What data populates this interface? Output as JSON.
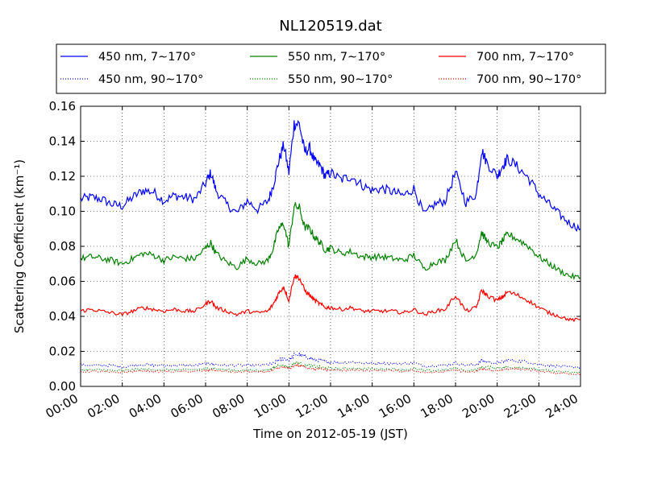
{
  "chart_data": {
    "type": "line",
    "title": "NL120519.dat",
    "xlabel": "Time on 2012-05-19 (JST)",
    "ylabel": "Scattering Coefficient (km⁻¹)",
    "xlim": [
      "00:00",
      "24:00"
    ],
    "ylim": [
      0,
      0.16
    ],
    "x_ticks": [
      "00:00",
      "02:00",
      "04:00",
      "06:00",
      "08:00",
      "10:00",
      "12:00",
      "14:00",
      "16:00",
      "18:00",
      "20:00",
      "22:00",
      "24:00"
    ],
    "y_ticks": [
      "0.00",
      "0.02",
      "0.04",
      "0.06",
      "0.08",
      "0.10",
      "0.12",
      "0.14",
      "0.16"
    ],
    "grid": true,
    "legend_position": "top",
    "x_hours": [
      0,
      0.5,
      1,
      1.5,
      2,
      2.5,
      3,
      3.5,
      4,
      4.5,
      5,
      5.5,
      6,
      6.25,
      6.5,
      7,
      7.5,
      8,
      8.5,
      9,
      9.25,
      9.5,
      9.75,
      10,
      10.25,
      10.5,
      10.75,
      11,
      11.25,
      11.5,
      11.75,
      12,
      12.5,
      13,
      13.5,
      14,
      14.5,
      15,
      15.5,
      16,
      16.5,
      17,
      17.5,
      18,
      18.5,
      19,
      19.25,
      19.5,
      20,
      20.25,
      20.5,
      21,
      21.5,
      22,
      22.5,
      23,
      23.5,
      24
    ],
    "series": [
      {
        "name": "450 nm, 7∼170°",
        "color": "#0000ff",
        "style": "solid",
        "values": [
          0.107,
          0.108,
          0.107,
          0.104,
          0.103,
          0.108,
          0.112,
          0.111,
          0.106,
          0.109,
          0.108,
          0.107,
          0.116,
          0.122,
          0.112,
          0.104,
          0.099,
          0.106,
          0.101,
          0.106,
          0.115,
          0.128,
          0.138,
          0.122,
          0.15,
          0.15,
          0.134,
          0.136,
          0.128,
          0.126,
          0.12,
          0.122,
          0.118,
          0.12,
          0.115,
          0.112,
          0.113,
          0.111,
          0.109,
          0.113,
          0.098,
          0.104,
          0.106,
          0.122,
          0.105,
          0.11,
          0.135,
          0.128,
          0.12,
          0.126,
          0.13,
          0.125,
          0.119,
          0.11,
          0.104,
          0.098,
          0.093,
          0.09
        ]
      },
      {
        "name": "450 nm, 90∼170°",
        "color": "#0000ff",
        "style": "dotted",
        "values": [
          0.0125,
          0.012,
          0.012,
          0.012,
          0.011,
          0.012,
          0.0125,
          0.012,
          0.012,
          0.012,
          0.012,
          0.012,
          0.013,
          0.013,
          0.0125,
          0.012,
          0.012,
          0.012,
          0.012,
          0.0125,
          0.013,
          0.015,
          0.016,
          0.015,
          0.018,
          0.018,
          0.017,
          0.016,
          0.015,
          0.015,
          0.014,
          0.014,
          0.0135,
          0.014,
          0.0135,
          0.013,
          0.0135,
          0.013,
          0.013,
          0.0135,
          0.0115,
          0.012,
          0.012,
          0.0135,
          0.012,
          0.0125,
          0.015,
          0.014,
          0.0135,
          0.014,
          0.015,
          0.0145,
          0.014,
          0.0125,
          0.012,
          0.0115,
          0.011,
          0.011
        ]
      },
      {
        "name": "550 nm, 7∼170°",
        "color": "#008000",
        "style": "solid",
        "values": [
          0.073,
          0.074,
          0.073,
          0.072,
          0.07,
          0.073,
          0.076,
          0.075,
          0.072,
          0.074,
          0.073,
          0.073,
          0.079,
          0.082,
          0.076,
          0.071,
          0.068,
          0.073,
          0.07,
          0.072,
          0.079,
          0.09,
          0.093,
          0.08,
          0.103,
          0.102,
          0.091,
          0.09,
          0.085,
          0.082,
          0.078,
          0.079,
          0.076,
          0.077,
          0.074,
          0.074,
          0.074,
          0.073,
          0.072,
          0.075,
          0.067,
          0.071,
          0.072,
          0.084,
          0.071,
          0.076,
          0.088,
          0.083,
          0.079,
          0.083,
          0.087,
          0.084,
          0.08,
          0.074,
          0.07,
          0.066,
          0.063,
          0.062
        ]
      },
      {
        "name": "550 nm, 90∼170°",
        "color": "#008000",
        "style": "dotted",
        "values": [
          0.0095,
          0.0095,
          0.0095,
          0.009,
          0.009,
          0.0095,
          0.01,
          0.0095,
          0.0095,
          0.0095,
          0.0095,
          0.0095,
          0.01,
          0.0105,
          0.01,
          0.0095,
          0.009,
          0.0095,
          0.009,
          0.0095,
          0.0105,
          0.012,
          0.012,
          0.011,
          0.013,
          0.0135,
          0.012,
          0.012,
          0.0115,
          0.011,
          0.0105,
          0.0105,
          0.01,
          0.0105,
          0.01,
          0.01,
          0.01,
          0.01,
          0.0095,
          0.01,
          0.009,
          0.009,
          0.0095,
          0.0105,
          0.009,
          0.0095,
          0.011,
          0.011,
          0.0105,
          0.0105,
          0.011,
          0.011,
          0.0105,
          0.0095,
          0.009,
          0.0085,
          0.008,
          0.008
        ]
      },
      {
        "name": "700 nm, 7∼170°",
        "color": "#ff0000",
        "style": "solid",
        "values": [
          0.043,
          0.044,
          0.043,
          0.042,
          0.041,
          0.043,
          0.045,
          0.044,
          0.043,
          0.044,
          0.043,
          0.043,
          0.047,
          0.049,
          0.045,
          0.043,
          0.041,
          0.043,
          0.042,
          0.043,
          0.047,
          0.053,
          0.057,
          0.049,
          0.063,
          0.062,
          0.055,
          0.052,
          0.049,
          0.047,
          0.045,
          0.045,
          0.044,
          0.045,
          0.043,
          0.043,
          0.043,
          0.043,
          0.042,
          0.044,
          0.041,
          0.043,
          0.044,
          0.052,
          0.043,
          0.045,
          0.055,
          0.052,
          0.049,
          0.051,
          0.054,
          0.052,
          0.049,
          0.045,
          0.042,
          0.04,
          0.038,
          0.038
        ]
      },
      {
        "name": "700 nm, 90∼170°",
        "color": "#ff0000",
        "style": "dotted",
        "values": [
          0.0085,
          0.0085,
          0.0085,
          0.008,
          0.008,
          0.0085,
          0.009,
          0.0085,
          0.0085,
          0.0085,
          0.0085,
          0.0085,
          0.009,
          0.0095,
          0.009,
          0.0085,
          0.008,
          0.0085,
          0.008,
          0.0085,
          0.0095,
          0.0105,
          0.011,
          0.01,
          0.012,
          0.012,
          0.011,
          0.0105,
          0.01,
          0.01,
          0.0095,
          0.0095,
          0.009,
          0.0095,
          0.009,
          0.009,
          0.009,
          0.009,
          0.0085,
          0.009,
          0.008,
          0.008,
          0.0085,
          0.0095,
          0.008,
          0.0085,
          0.01,
          0.0095,
          0.009,
          0.0095,
          0.01,
          0.01,
          0.0095,
          0.0085,
          0.008,
          0.0075,
          0.007,
          0.007
        ]
      }
    ]
  }
}
